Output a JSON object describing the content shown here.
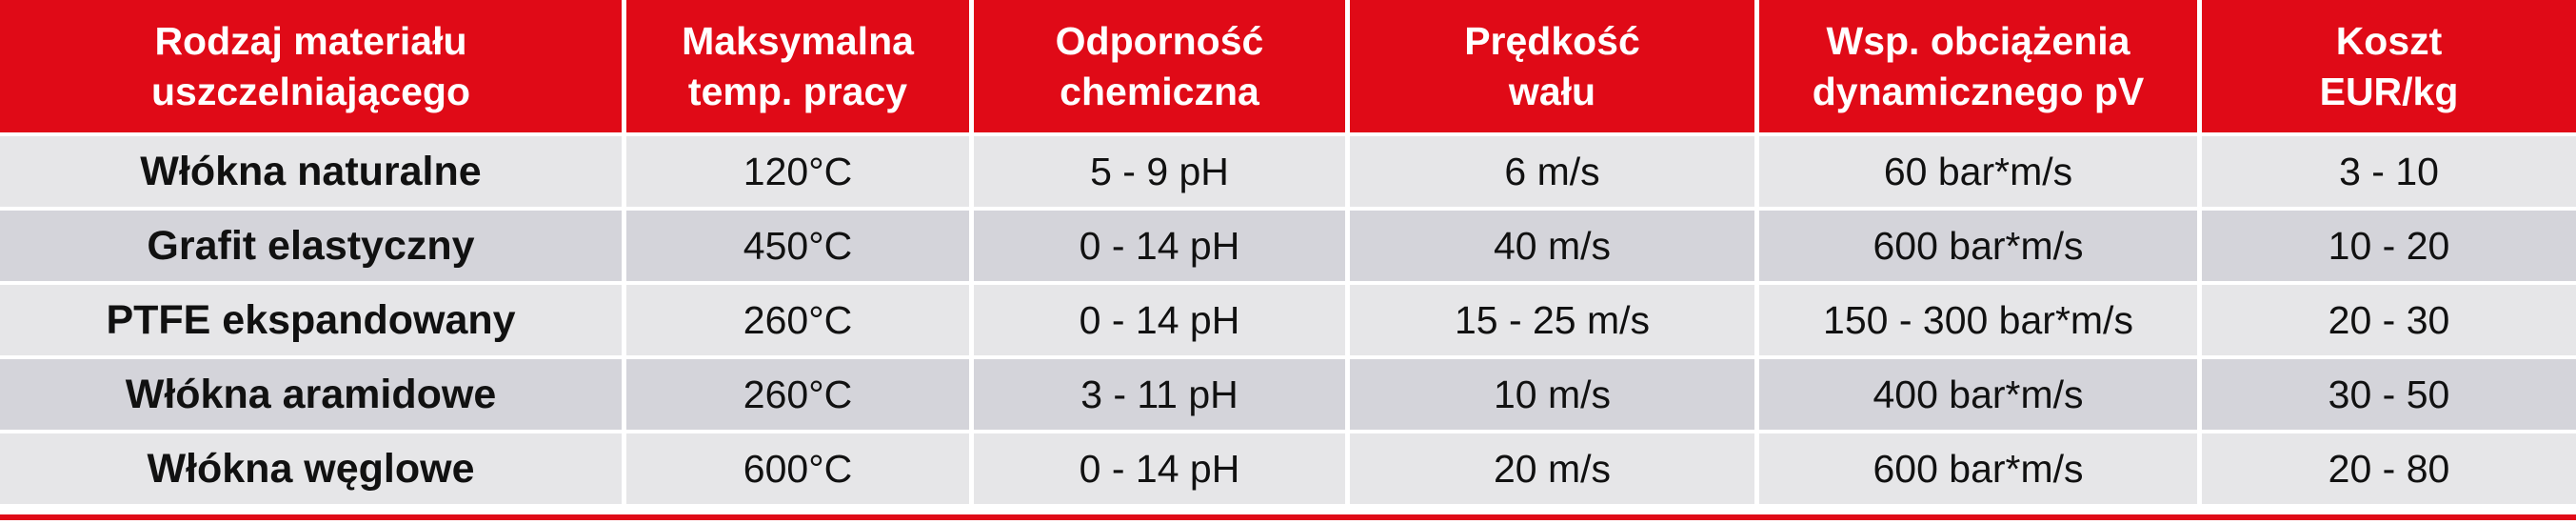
{
  "colors": {
    "header_bg": "#e00a17",
    "header_text": "#ffffff",
    "row_light": "#e6e6e8",
    "row_dark": "#d4d4da",
    "rule": "#e00a17"
  },
  "table": {
    "headers": [
      {
        "line1": "Rodzaj materiału",
        "line2": "uszczelniającego"
      },
      {
        "line1": "Maksymalna",
        "line2": "temp. pracy"
      },
      {
        "line1": "Odporność",
        "line2": "chemiczna"
      },
      {
        "line1": "Prędkość",
        "line2": "wału"
      },
      {
        "line1": "Wsp. obciążenia",
        "line2": "dynamicznego pV"
      },
      {
        "line1": "Koszt",
        "line2": "EUR/kg"
      }
    ],
    "rows": [
      {
        "material": "Włókna naturalne",
        "temp": "120°C",
        "chem": "5 - 9 pH",
        "speed": "6 m/s",
        "pv": "60 bar*m/s",
        "cost": "3 - 10"
      },
      {
        "material": "Grafit elastyczny",
        "temp": "450°C",
        "chem": "0 - 14 pH",
        "speed": "40 m/s",
        "pv": "600 bar*m/s",
        "cost": "10 - 20"
      },
      {
        "material": "PTFE ekspandowany",
        "temp": "260°C",
        "chem": "0 - 14 pH",
        "speed": "15 - 25 m/s",
        "pv": "150 - 300 bar*m/s",
        "cost": "20 - 30"
      },
      {
        "material": "Włókna aramidowe",
        "temp": "260°C",
        "chem": "3 - 11 pH",
        "speed": "10 m/s",
        "pv": "400 bar*m/s",
        "cost": "30 - 50"
      },
      {
        "material": "Włókna węglowe",
        "temp": "600°C",
        "chem": "0 - 14 pH",
        "speed": "20 m/s",
        "pv": "600 bar*m/s",
        "cost": "20 - 80"
      }
    ]
  }
}
